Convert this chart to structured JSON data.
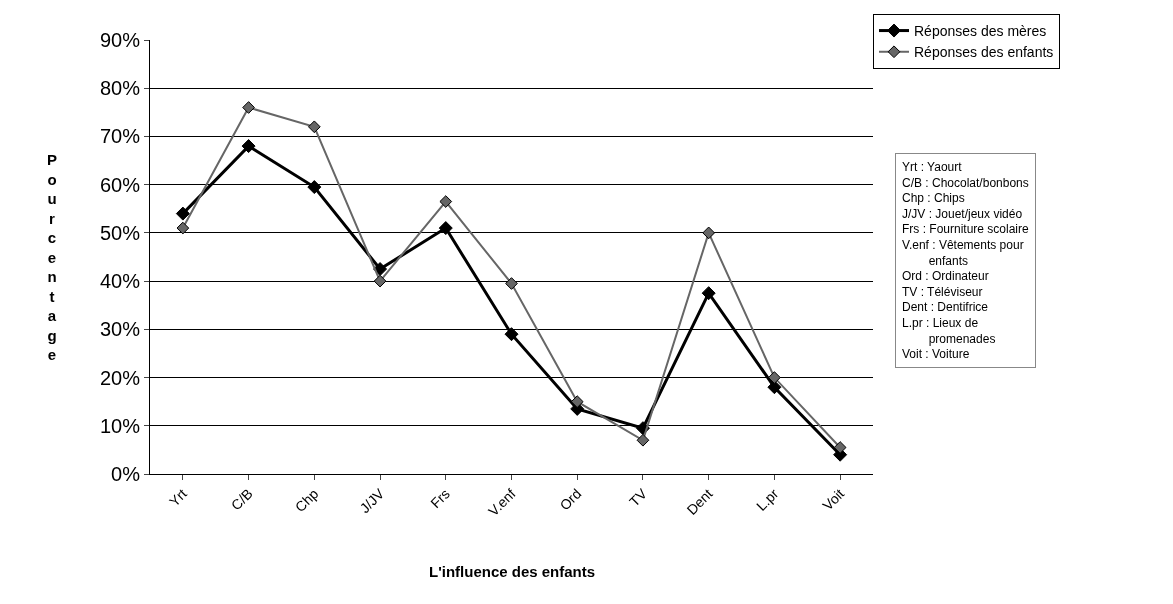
{
  "chart_data": {
    "type": "line",
    "xlabel": "L'influence des enfants",
    "ylabel": "Pourcentage",
    "categories": [
      "Yrt",
      "C/B",
      "Chp",
      "J/JV",
      "Frs",
      "V.enf",
      "Ord",
      "TV",
      "Dent",
      "L.pr",
      "Voit"
    ],
    "series": [
      {
        "name": "Réponses des mères",
        "color": "#000000",
        "values": [
          54,
          68,
          59.5,
          42.5,
          51,
          29,
          13.5,
          9.5,
          37.5,
          18,
          4
        ]
      },
      {
        "name": "Réponses des enfants",
        "color": "#666666",
        "values": [
          51,
          76,
          72,
          40,
          56.5,
          39.5,
          15,
          7,
          50,
          20,
          5.5
        ]
      }
    ],
    "ylim": [
      0,
      90
    ],
    "yticks": [
      {
        "value": 0,
        "label": "0%"
      },
      {
        "value": 10,
        "label": "10%"
      },
      {
        "value": 20,
        "label": "20%"
      },
      {
        "value": 30,
        "label": "30%"
      },
      {
        "value": 40,
        "label": "40%"
      },
      {
        "value": 50,
        "label": "50%"
      },
      {
        "value": 60,
        "label": "60%"
      },
      {
        "value": 70,
        "label": "70%"
      },
      {
        "value": 80,
        "label": "80%"
      },
      {
        "value": 90,
        "label": "90%"
      }
    ],
    "grid": "y",
    "legend": "top right",
    "marker": "diamond",
    "line_style": "solid",
    "annotations": [
      "Yrt : Yaourt",
      "C/B : Chocolat/bonbons",
      "Chp : Chips",
      "J/JV : Jouet/jeux vidéo",
      "Frs : Fourniture scolaire",
      "V.enf : Vêtements pour\nenfants",
      "Ord : Ordinateur",
      "TV : Téléviseur",
      "Dent : Dentifrice",
      "L.pr : Lieux de\npromenades",
      "Voit : Voiture"
    ]
  }
}
